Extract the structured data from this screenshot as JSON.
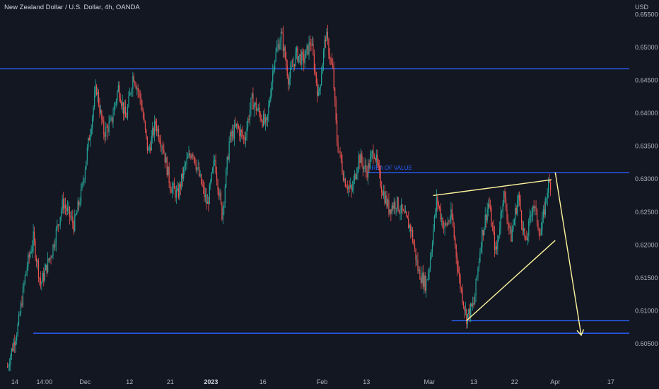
{
  "chart_data": {
    "type": "candlestick",
    "title": "New Zealand Dollar / U.S. Dollar, 4h, OANDA",
    "y_unit": "USD",
    "ylim": [
      0.6005,
      0.656
    ],
    "y_ticks": [
      "0.65500",
      "0.65000",
      "0.64500",
      "0.64000",
      "0.63500",
      "0.63000",
      "0.62500",
      "0.62000",
      "0.61500",
      "0.61000",
      "0.60500"
    ],
    "x_ticks": [
      {
        "label": "14",
        "index": 2
      },
      {
        "label": "14:00",
        "index": 10
      },
      {
        "label": "Dec",
        "index": 21
      },
      {
        "label": "12",
        "index": 33
      },
      {
        "label": "21",
        "index": 44
      },
      {
        "label": "2023",
        "index": 55,
        "bold": true
      },
      {
        "label": "16",
        "index": 69
      },
      {
        "label": "Feb",
        "index": 85
      },
      {
        "label": "13",
        "index": 97
      },
      {
        "label": "Mar",
        "index": 114
      },
      {
        "label": "13",
        "index": 126
      },
      {
        "label": "22",
        "index": 137
      },
      {
        "label": "Apr",
        "index": 148
      },
      {
        "label": "17",
        "index": 163
      }
    ],
    "x_range": [
      -2,
      168
    ],
    "price_path": [
      [
        0,
        0.6015
      ],
      [
        3,
        0.608
      ],
      [
        5,
        0.616
      ],
      [
        7,
        0.621
      ],
      [
        9,
        0.614
      ],
      [
        12,
        0.619
      ],
      [
        15,
        0.6265
      ],
      [
        18,
        0.623
      ],
      [
        20,
        0.628
      ],
      [
        22,
        0.636
      ],
      [
        24,
        0.644
      ],
      [
        26,
        0.637
      ],
      [
        28,
        0.6385
      ],
      [
        30,
        0.644
      ],
      [
        32,
        0.639
      ],
      [
        34,
        0.646
      ],
      [
        36,
        0.642
      ],
      [
        38,
        0.634
      ],
      [
        40,
        0.6385
      ],
      [
        42,
        0.635
      ],
      [
        44,
        0.629
      ],
      [
        46,
        0.6275
      ],
      [
        48,
        0.632
      ],
      [
        50,
        0.6345
      ],
      [
        52,
        0.63
      ],
      [
        54,
        0.626
      ],
      [
        56,
        0.633
      ],
      [
        58,
        0.6245
      ],
      [
        60,
        0.636
      ],
      [
        62,
        0.638
      ],
      [
        64,
        0.636
      ],
      [
        66,
        0.642
      ],
      [
        68,
        0.64
      ],
      [
        70,
        0.638
      ],
      [
        72,
        0.648
      ],
      [
        74,
        0.652
      ],
      [
        76,
        0.645
      ],
      [
        78,
        0.649
      ],
      [
        80,
        0.648
      ],
      [
        82,
        0.651
      ],
      [
        84,
        0.6425
      ],
      [
        86,
        0.652
      ],
      [
        88,
        0.646
      ],
      [
        89,
        0.636
      ],
      [
        91,
        0.63
      ],
      [
        93,
        0.628
      ],
      [
        95,
        0.6335
      ],
      [
        97,
        0.631
      ],
      [
        99,
        0.6345
      ],
      [
        101,
        0.629
      ],
      [
        103,
        0.6255
      ],
      [
        105,
        0.6265
      ],
      [
        107,
        0.6245
      ],
      [
        109,
        0.6225
      ],
      [
        111,
        0.616
      ],
      [
        113,
        0.614
      ],
      [
        114,
        0.617
      ],
      [
        116,
        0.627
      ],
      [
        118,
        0.6225
      ],
      [
        120,
        0.6245
      ],
      [
        122,
        0.615
      ],
      [
        124,
        0.609
      ],
      [
        126,
        0.611
      ],
      [
        128,
        0.621
      ],
      [
        130,
        0.6265
      ],
      [
        132,
        0.6185
      ],
      [
        134,
        0.628
      ],
      [
        136,
        0.621
      ],
      [
        138,
        0.6275
      ],
      [
        140,
        0.62
      ],
      [
        142,
        0.6265
      ],
      [
        144,
        0.6215
      ],
      [
        146,
        0.629
      ],
      [
        147,
        0.6295
      ]
    ],
    "horizontal_levels": [
      {
        "price": 0.64675,
        "from_index": -2,
        "to_index": 168
      },
      {
        "price": 0.631,
        "from_index": 97,
        "to_index": 168,
        "label": "AREA OF VALUE"
      },
      {
        "price": 0.6085,
        "from_index": 120,
        "to_index": 168
      },
      {
        "price": 0.6066,
        "from_index": 7,
        "to_index": 168
      }
    ],
    "trendlines": [
      {
        "from": [
          115,
          0.6275
        ],
        "to": [
          147,
          0.6299
        ]
      },
      {
        "from": [
          124,
          0.6085
        ],
        "to": [
          148,
          0.6207
        ]
      },
      {
        "from": [
          148,
          0.631
        ],
        "to": [
          155,
          0.6063
        ],
        "arrow": true
      }
    ],
    "colors": {
      "background": "#131722",
      "up": "#26a69a",
      "down": "#ef5350",
      "level": "#2962ff",
      "trend": "#fff59d",
      "text": "#b2b5be"
    },
    "grid": false,
    "legend": "none"
  }
}
